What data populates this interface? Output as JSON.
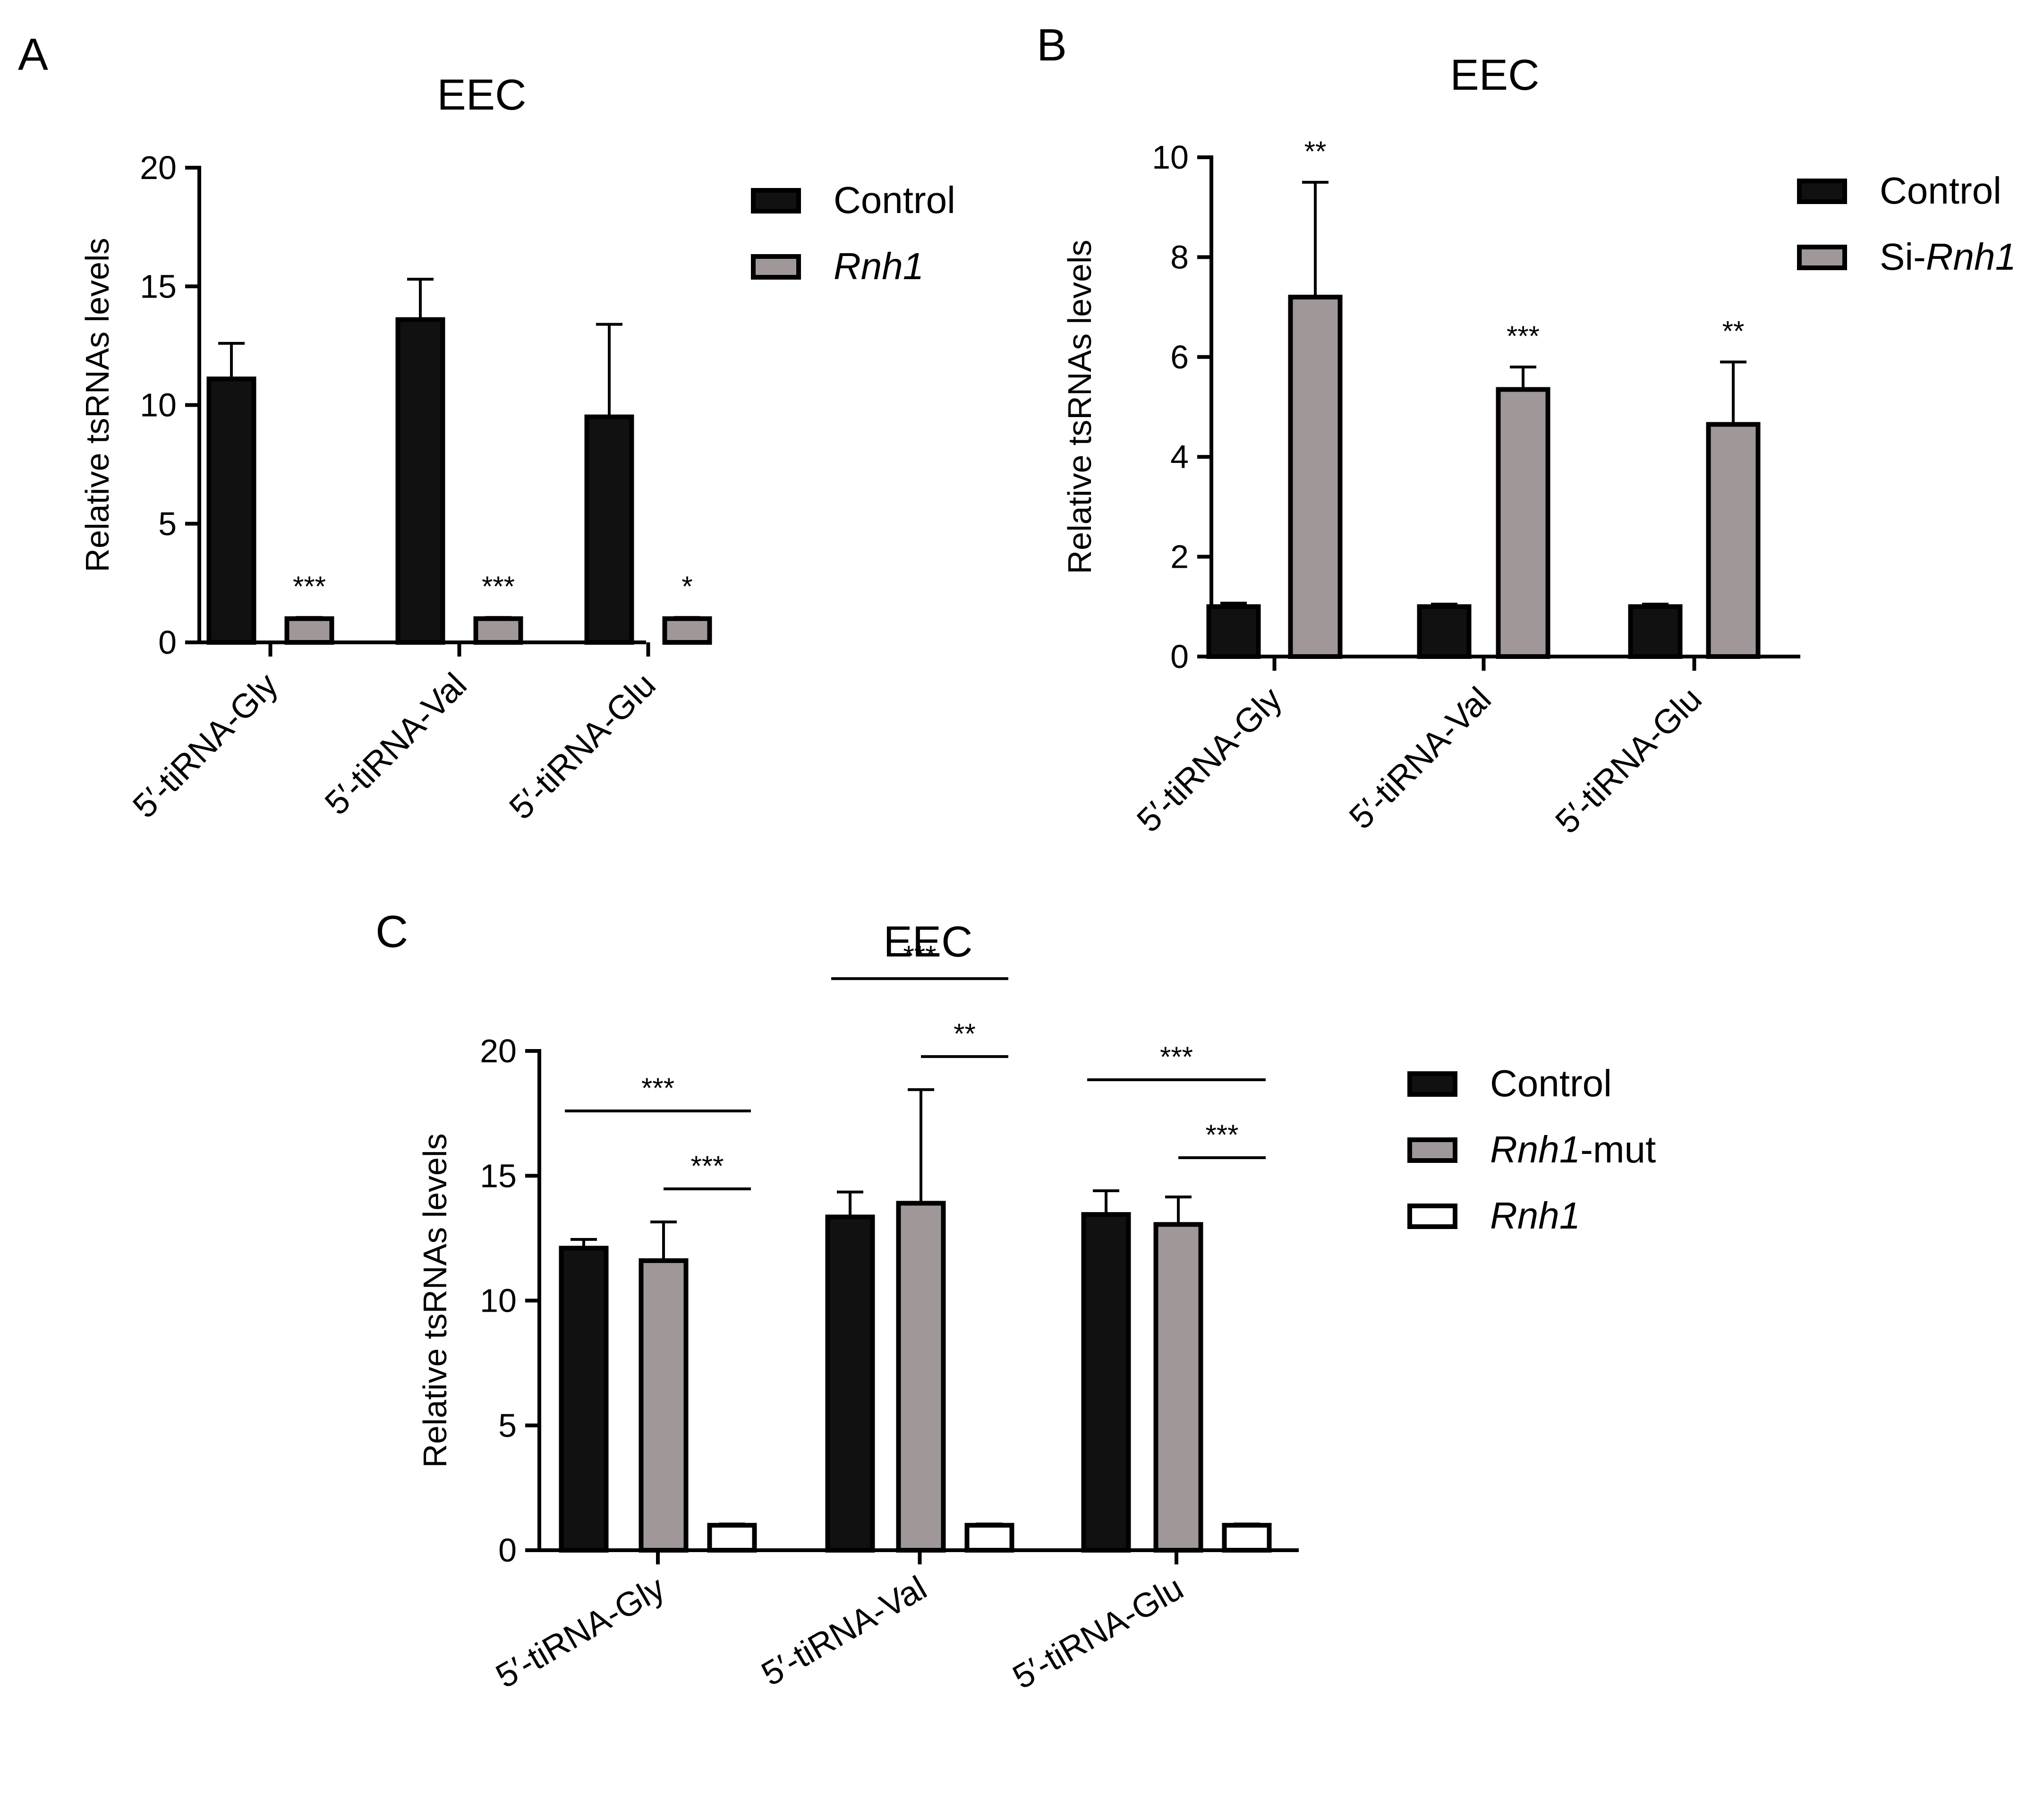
{
  "colors": {
    "control": "#111111",
    "gray": "#a09898",
    "white": "#ffffff",
    "axis": "#000000"
  },
  "chart_data": [
    {
      "panel": "A",
      "type": "bar",
      "title": "EEC",
      "ylabel": "Relative tsRNAs levels",
      "xlabel": "",
      "ylim": [
        0,
        20
      ],
      "yticks": [
        0,
        5,
        10,
        15,
        20
      ],
      "categories": [
        "5′-tiRNA-Gly",
        "5′-tiRNA-Val",
        "5′-tiRNA-Glu"
      ],
      "series": [
        {
          "name": "Control",
          "italic": false,
          "color": "#111111",
          "values": [
            11.1,
            13.6,
            9.5
          ],
          "errors": [
            1.5,
            1.7,
            3.9
          ]
        },
        {
          "name": "Rnh1",
          "italic": true,
          "color": "#a09898",
          "values": [
            1.0,
            1.0,
            1.0
          ],
          "errors": [
            0.05,
            0.05,
            0.05
          ]
        }
      ],
      "significance": [
        {
          "category": 0,
          "series": 1,
          "label": "***"
        },
        {
          "category": 1,
          "series": 1,
          "label": "***"
        },
        {
          "category": 2,
          "series": 1,
          "label": "*"
        }
      ],
      "brackets": [],
      "legend": "right"
    },
    {
      "panel": "B",
      "type": "bar",
      "title": "EEC",
      "ylabel": "Relative tsRNAs levels",
      "xlabel": "",
      "ylim": [
        0,
        10
      ],
      "yticks": [
        0,
        2,
        4,
        6,
        8,
        10
      ],
      "categories": [
        "5′-tiRNA-Gly",
        "5′-tiRNA-Val",
        "5′-tiRNA-Glu"
      ],
      "series": [
        {
          "name": "Control",
          "prefix": "",
          "italic": false,
          "color": "#111111",
          "values": [
            1.0,
            1.0,
            1.0
          ],
          "errors": [
            0.07,
            0.05,
            0.05
          ]
        },
        {
          "name": "Rnh1",
          "prefix": "Si-",
          "italic": true,
          "color": "#a09898",
          "values": [
            7.2,
            5.35,
            4.65
          ],
          "errors": [
            2.3,
            0.45,
            1.25
          ]
        }
      ],
      "significance": [
        {
          "category": 0,
          "series": 1,
          "label": "**"
        },
        {
          "category": 1,
          "series": 1,
          "label": "***"
        },
        {
          "category": 2,
          "series": 1,
          "label": "**"
        }
      ],
      "brackets": [],
      "legend": "right"
    },
    {
      "panel": "C",
      "type": "bar",
      "title": "EEC",
      "ylabel": "Relative tsRNAs levels",
      "xlabel": "",
      "ylim": [
        0,
        20
      ],
      "yticks": [
        0,
        5,
        10,
        15,
        20
      ],
      "categories": [
        "5′-tiRNA-Gly",
        "5′-tiRNA-Val",
        "5′-tiRNA-Glu"
      ],
      "series": [
        {
          "name": "Control",
          "suffix": "",
          "italic": false,
          "color": "#111111",
          "values": [
            12.1,
            13.35,
            13.45
          ],
          "errors": [
            0.35,
            1.0,
            0.95
          ]
        },
        {
          "name": "Rnh1",
          "suffix": "-mut",
          "italic": true,
          "color": "#a09898",
          "values": [
            11.6,
            13.9,
            13.05
          ],
          "errors": [
            1.55,
            4.55,
            1.1
          ]
        },
        {
          "name": "Rnh1",
          "suffix": "",
          "italic": true,
          "color": "#ffffff",
          "values": [
            1.0,
            1.0,
            1.0
          ],
          "errors": [
            0.05,
            0.05,
            0.05
          ]
        }
      ],
      "significance": [],
      "brackets": [
        {
          "category": 0,
          "from": 0,
          "to": 2,
          "label": "***",
          "level": 2
        },
        {
          "category": 0,
          "from": 1,
          "to": 2,
          "label": "***",
          "level": 1
        },
        {
          "category": 1,
          "from": 0,
          "to": 2,
          "label": "***",
          "level": 2
        },
        {
          "category": 1,
          "from": 1,
          "to": 2,
          "label": "**",
          "level": 1
        },
        {
          "category": 2,
          "from": 0,
          "to": 2,
          "label": "***",
          "level": 2
        },
        {
          "category": 2,
          "from": 1,
          "to": 2,
          "label": "***",
          "level": 1
        }
      ],
      "legend": "right"
    }
  ]
}
